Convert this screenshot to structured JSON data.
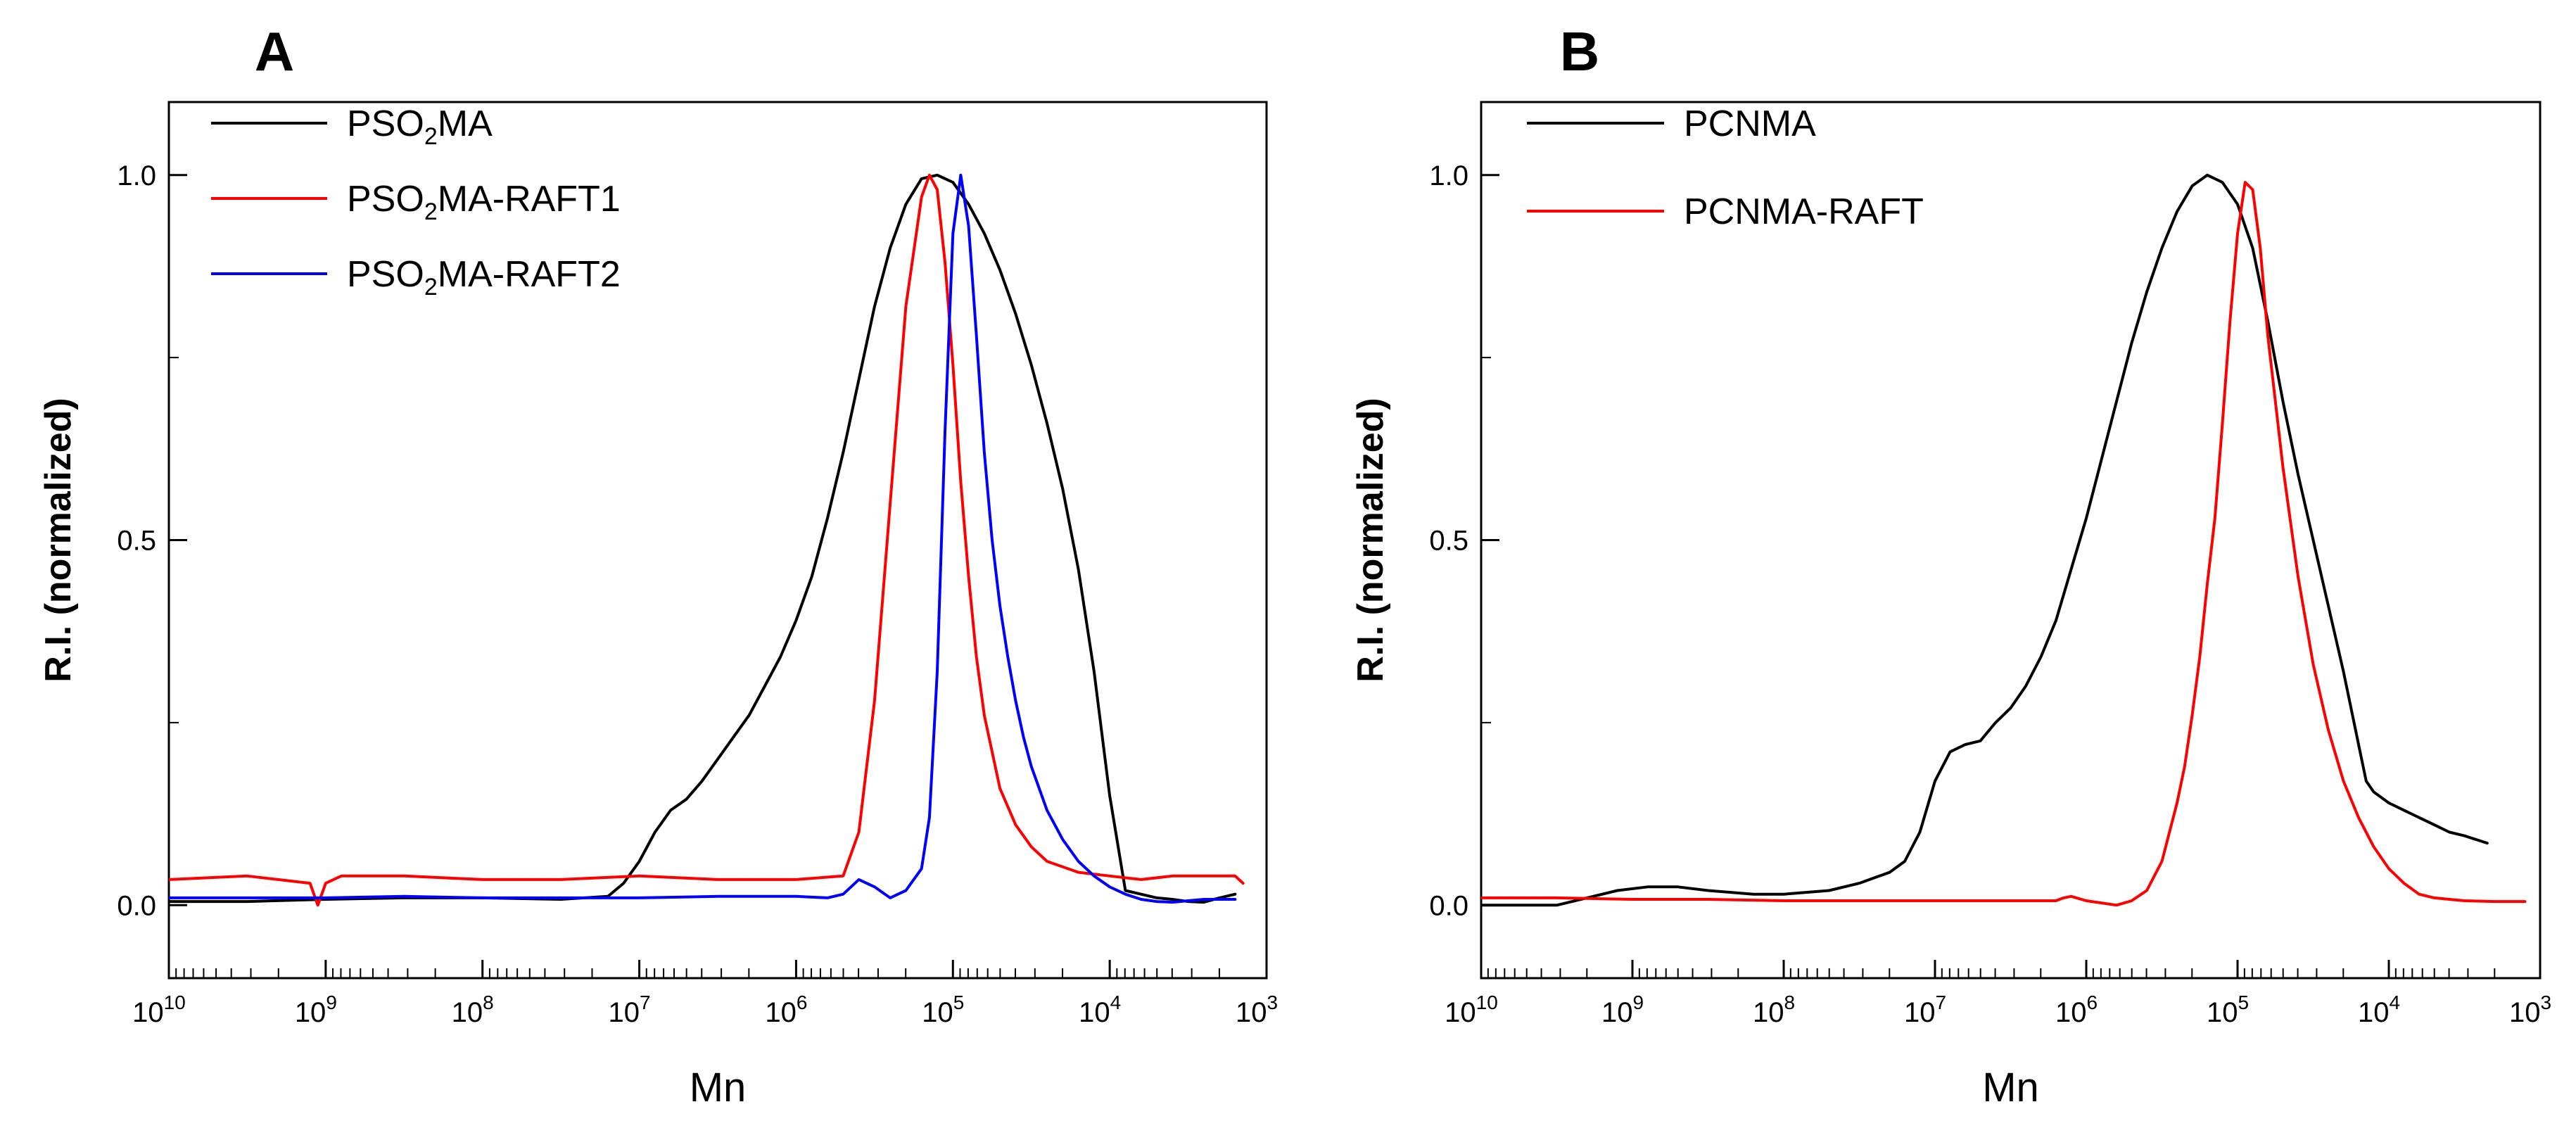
{
  "chart_data": [
    {
      "type": "line",
      "panel_label": "A",
      "xlabel": "Mn",
      "ylabel": "R.I. (normalized)",
      "x_scale": "log",
      "x_reversed": true,
      "xlim": [
        10000000000,
        1000
      ],
      "ylim": [
        -0.1,
        1.1
      ],
      "x_ticks": [
        {
          "base": "10",
          "exp": "10"
        },
        {
          "base": "10",
          "exp": "9"
        },
        {
          "base": "10",
          "exp": "8"
        },
        {
          "base": "10",
          "exp": "7"
        },
        {
          "base": "10",
          "exp": "6"
        },
        {
          "base": "10",
          "exp": "5"
        },
        {
          "base": "10",
          "exp": "4"
        },
        {
          "base": "10",
          "exp": "3"
        }
      ],
      "y_ticks": [
        "0.0",
        "0.5",
        "1.0"
      ],
      "y_tick_values": [
        0.0,
        0.5,
        1.0
      ],
      "legend": [
        {
          "parts": [
            {
              "t": "PSO"
            },
            {
              "t": "2",
              "sub": true
            },
            {
              "t": "MA"
            }
          ],
          "color": "#000000"
        },
        {
          "parts": [
            {
              "t": "PSO"
            },
            {
              "t": "2",
              "sub": true
            },
            {
              "t": "MA-RAFT1"
            }
          ],
          "color": "#ff0000"
        },
        {
          "parts": [
            {
              "t": "PSO"
            },
            {
              "t": "2",
              "sub": true
            },
            {
              "t": "MA-RAFT2"
            }
          ],
          "color": "#0000ff"
        }
      ],
      "series": [
        {
          "name": "PSO2MA",
          "color": "#000000",
          "x": [
            10,
            9.5,
            9,
            8.5,
            8,
            7.5,
            7.2,
            7.1,
            7,
            6.9,
            6.8,
            6.7,
            6.6,
            6.5,
            6.4,
            6.3,
            6.2,
            6.1,
            6,
            5.9,
            5.8,
            5.7,
            5.6,
            5.5,
            5.4,
            5.3,
            5.2,
            5.1,
            5,
            4.9,
            4.8,
            4.7,
            4.6,
            4.5,
            4.4,
            4.3,
            4.2,
            4.1,
            4,
            3.9,
            3.8,
            3.7,
            3.6,
            3.5,
            3.4,
            3.3,
            3.2
          ],
          "y": [
            0.005,
            0.005,
            0.008,
            0.01,
            0.01,
            0.008,
            0.012,
            0.03,
            0.06,
            0.1,
            0.13,
            0.145,
            0.17,
            0.2,
            0.23,
            0.26,
            0.3,
            0.34,
            0.39,
            0.45,
            0.53,
            0.62,
            0.72,
            0.82,
            0.9,
            0.96,
            0.995,
            1.0,
            0.99,
            0.96,
            0.92,
            0.87,
            0.81,
            0.74,
            0.66,
            0.57,
            0.46,
            0.32,
            0.15,
            0.02,
            0.015,
            0.01,
            0.008,
            0.005,
            0.004,
            0.01,
            0.015
          ]
        },
        {
          "name": "PSO2MA-RAFT1",
          "color": "#ff0000",
          "x": [
            10,
            9.5,
            9.1,
            9.05,
            9.0,
            8.9,
            8.5,
            8,
            7.5,
            7,
            6.5,
            6,
            5.7,
            5.6,
            5.5,
            5.4,
            5.3,
            5.2,
            5.15,
            5.1,
            5.05,
            5.0,
            4.95,
            4.9,
            4.85,
            4.8,
            4.7,
            4.6,
            4.5,
            4.4,
            4.2,
            4,
            3.8,
            3.6,
            3.4,
            3.2,
            3.15
          ],
          "y": [
            0.035,
            0.04,
            0.03,
            0.0,
            0.03,
            0.04,
            0.04,
            0.035,
            0.035,
            0.04,
            0.035,
            0.035,
            0.04,
            0.1,
            0.28,
            0.55,
            0.82,
            0.97,
            1.0,
            0.98,
            0.88,
            0.74,
            0.58,
            0.45,
            0.34,
            0.26,
            0.16,
            0.11,
            0.08,
            0.06,
            0.045,
            0.04,
            0.035,
            0.04,
            0.04,
            0.04,
            0.03
          ]
        },
        {
          "name": "PSO2MA-RAFT2",
          "color": "#0000ff",
          "x": [
            10,
            9.5,
            9,
            8.5,
            8,
            7.5,
            7,
            6.5,
            6,
            5.8,
            5.7,
            5.6,
            5.5,
            5.4,
            5.3,
            5.2,
            5.15,
            5.1,
            5.05,
            5.0,
            4.95,
            4.9,
            4.85,
            4.8,
            4.75,
            4.7,
            4.65,
            4.6,
            4.55,
            4.5,
            4.4,
            4.3,
            4.2,
            4.1,
            4,
            3.9,
            3.8,
            3.7,
            3.6,
            3.5,
            3.4,
            3.3,
            3.2
          ],
          "y": [
            0.01,
            0.01,
            0.01,
            0.012,
            0.01,
            0.01,
            0.01,
            0.012,
            0.012,
            0.01,
            0.015,
            0.035,
            0.025,
            0.01,
            0.02,
            0.05,
            0.12,
            0.32,
            0.65,
            0.92,
            1.0,
            0.93,
            0.78,
            0.62,
            0.5,
            0.41,
            0.34,
            0.28,
            0.23,
            0.19,
            0.13,
            0.09,
            0.06,
            0.04,
            0.025,
            0.015,
            0.008,
            0.005,
            0.004,
            0.006,
            0.008,
            0.008,
            0.008
          ]
        }
      ]
    },
    {
      "type": "line",
      "panel_label": "B",
      "xlabel": "Mn",
      "ylabel": "R.I. (normalized)",
      "x_scale": "log",
      "x_reversed": true,
      "xlim": [
        10000000000,
        1000
      ],
      "ylim": [
        -0.1,
        1.1
      ],
      "x_ticks": [
        {
          "base": "10",
          "exp": "10"
        },
        {
          "base": "10",
          "exp": "9"
        },
        {
          "base": "10",
          "exp": "8"
        },
        {
          "base": "10",
          "exp": "7"
        },
        {
          "base": "10",
          "exp": "6"
        },
        {
          "base": "10",
          "exp": "5"
        },
        {
          "base": "10",
          "exp": "4"
        },
        {
          "base": "10",
          "exp": "3"
        }
      ],
      "y_ticks": [
        "0.0",
        "0.5",
        "1.0"
      ],
      "y_tick_values": [
        0.0,
        0.5,
        1.0
      ],
      "legend": [
        {
          "parts": [
            {
              "t": "PCNMA"
            }
          ],
          "color": "#000000"
        },
        {
          "parts": [
            {
              "t": "PCNMA-RAFT"
            }
          ],
          "color": "#ff0000"
        }
      ],
      "series": [
        {
          "name": "PCNMA",
          "color": "#000000",
          "x": [
            10,
            9.5,
            9.3,
            9.1,
            8.9,
            8.7,
            8.5,
            8.2,
            8,
            7.7,
            7.5,
            7.3,
            7.2,
            7.1,
            7,
            6.9,
            6.8,
            6.7,
            6.6,
            6.5,
            6.4,
            6.3,
            6.2,
            6.1,
            6,
            5.9,
            5.8,
            5.7,
            5.6,
            5.5,
            5.4,
            5.3,
            5.2,
            5.1,
            5.0,
            4.9,
            4.8,
            4.7,
            4.6,
            4.5,
            4.4,
            4.3,
            4.2,
            4.15,
            4.1,
            4.0,
            3.9,
            3.8,
            3.7,
            3.6,
            3.5,
            3.35
          ],
          "y": [
            0.0,
            0.0,
            0.01,
            0.02,
            0.025,
            0.025,
            0.02,
            0.015,
            0.015,
            0.02,
            0.03,
            0.045,
            0.06,
            0.1,
            0.17,
            0.21,
            0.22,
            0.225,
            0.25,
            0.27,
            0.3,
            0.34,
            0.39,
            0.46,
            0.53,
            0.61,
            0.69,
            0.77,
            0.84,
            0.9,
            0.95,
            0.985,
            1.0,
            0.99,
            0.96,
            0.9,
            0.8,
            0.69,
            0.59,
            0.5,
            0.41,
            0.32,
            0.22,
            0.17,
            0.155,
            0.14,
            0.13,
            0.12,
            0.11,
            0.1,
            0.095,
            0.085
          ]
        },
        {
          "name": "PCNMA-RAFT",
          "color": "#ff0000",
          "x": [
            10,
            9.5,
            9,
            8.5,
            8,
            7.5,
            7,
            6.5,
            6.2,
            6.15,
            6.1,
            6.0,
            5.9,
            5.8,
            5.7,
            5.6,
            5.5,
            5.4,
            5.35,
            5.3,
            5.25,
            5.2,
            5.15,
            5.1,
            5.05,
            5.0,
            4.95,
            4.9,
            4.85,
            4.8,
            4.7,
            4.6,
            4.5,
            4.4,
            4.3,
            4.2,
            4.1,
            4.0,
            3.9,
            3.8,
            3.7,
            3.6,
            3.5,
            3.3,
            3.1
          ],
          "y": [
            0.01,
            0.01,
            0.008,
            0.008,
            0.006,
            0.006,
            0.006,
            0.006,
            0.006,
            0.01,
            0.012,
            0.006,
            0.003,
            0.0,
            0.006,
            0.02,
            0.06,
            0.14,
            0.19,
            0.26,
            0.34,
            0.44,
            0.53,
            0.66,
            0.8,
            0.92,
            0.99,
            0.98,
            0.9,
            0.78,
            0.6,
            0.45,
            0.33,
            0.24,
            0.17,
            0.12,
            0.08,
            0.05,
            0.03,
            0.015,
            0.01,
            0.008,
            0.006,
            0.005,
            0.005
          ]
        }
      ]
    }
  ]
}
